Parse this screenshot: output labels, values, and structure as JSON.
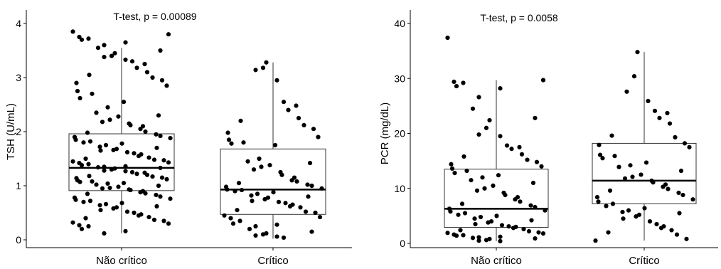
{
  "chart_data": [
    {
      "type": "box",
      "annotation": "T-test, p = 0.00089",
      "ylabel": "TSH (U/mL)",
      "xlabel": "",
      "categories": [
        "Não crítico",
        "Crítico"
      ],
      "ylim": [
        -0.1,
        4.15
      ],
      "yticks": [
        0,
        1,
        2,
        3,
        4
      ],
      "grid": false,
      "boxes": [
        {
          "category": "Não crítico",
          "min": 0.12,
          "q1": 0.91,
          "median": 1.33,
          "q3": 1.96,
          "max": 3.55
        },
        {
          "category": "Crítico",
          "min": 0.02,
          "q1": 0.47,
          "median": 0.93,
          "q3": 1.68,
          "max": 3.28
        }
      ],
      "points": [
        {
          "group": 0,
          "values": [
            3.85,
            3.8,
            3.75,
            3.72,
            3.7,
            3.65,
            3.6,
            3.55,
            3.5,
            3.45,
            3.4,
            3.38,
            3.33,
            3.3,
            3.25,
            3.18,
            3.1,
            3.05,
            3.0,
            2.95,
            2.9,
            2.85,
            2.75,
            2.7,
            2.62,
            2.55,
            2.45,
            2.35,
            2.3,
            2.28,
            2.22,
            2.18,
            2.15,
            2.12,
            2.1,
            2.05,
            2.0,
            1.98,
            1.95,
            1.92,
            1.9,
            1.88,
            1.85,
            1.82,
            1.8,
            1.78,
            1.75,
            1.72,
            1.7,
            1.68,
            1.66,
            1.65,
            1.62,
            1.6,
            1.58,
            1.55,
            1.52,
            1.5,
            1.48,
            1.47,
            1.45,
            1.43,
            1.42,
            1.4,
            1.38,
            1.36,
            1.35,
            1.34,
            1.33,
            1.32,
            1.3,
            1.28,
            1.27,
            1.25,
            1.24,
            1.22,
            1.2,
            1.18,
            1.17,
            1.15,
            1.14,
            1.12,
            1.1,
            1.08,
            1.07,
            1.05,
            1.04,
            1.02,
            1.0,
            0.98,
            0.96,
            0.95,
            0.93,
            0.92,
            0.9,
            0.88,
            0.86,
            0.85,
            0.83,
            0.8,
            0.78,
            0.76,
            0.74,
            0.72,
            0.7,
            0.68,
            0.66,
            0.64,
            0.62,
            0.6,
            0.58,
            0.55,
            0.52,
            0.5,
            0.47,
            0.45,
            0.42,
            0.4,
            0.37,
            0.35,
            0.32,
            0.3,
            0.27,
            0.25,
            0.2,
            0.16,
            0.12
          ]
        },
        {
          "group": 1,
          "values": [
            3.28,
            3.18,
            3.14,
            2.95,
            2.55,
            2.48,
            2.4,
            2.25,
            2.2,
            2.12,
            2.05,
            1.98,
            1.9,
            1.85,
            1.8,
            1.78,
            1.75,
            1.5,
            1.45,
            1.42,
            1.38,
            1.35,
            1.3,
            1.25,
            1.2,
            1.15,
            1.1,
            1.08,
            1.05,
            1.02,
            1.0,
            0.98,
            0.95,
            0.93,
            0.92,
            0.9,
            0.88,
            0.85,
            0.82,
            0.8,
            0.78,
            0.75,
            0.72,
            0.7,
            0.68,
            0.65,
            0.62,
            0.6,
            0.55,
            0.52,
            0.5,
            0.45,
            0.42,
            0.4,
            0.35,
            0.3,
            0.28,
            0.25,
            0.2,
            0.15,
            0.12,
            0.1,
            0.08,
            0.06,
            0.04
          ]
        }
      ]
    },
    {
      "type": "box",
      "annotation": "T-test, p = 0.0058",
      "ylabel": "PCR (mg/dL)",
      "xlabel": "",
      "categories": [
        "Não crítico",
        "Crítico"
      ],
      "ylim": [
        -1,
        41
      ],
      "yticks": [
        0,
        10,
        20,
        30,
        40
      ],
      "grid": false,
      "boxes": [
        {
          "category": "Não crítico",
          "min": 0.4,
          "q1": 2.9,
          "median": 6.3,
          "q3": 13.5,
          "max": 29.7
        },
        {
          "category": "Crítico",
          "min": 0.5,
          "q1": 7.2,
          "median": 11.4,
          "q3": 18.2,
          "max": 34.8
        }
      ],
      "points": [
        {
          "group": 0,
          "values": [
            37.4,
            29.7,
            29.4,
            29.2,
            28.6,
            28.2,
            26.6,
            24.5,
            22.8,
            22.4,
            21.0,
            19.8,
            19.5,
            17.8,
            17.5,
            17.2,
            16.2,
            15.8,
            15.2,
            14.8,
            14.4,
            14.0,
            13.6,
            13.2,
            12.8,
            12.4,
            12.0,
            11.5,
            11.0,
            10.5,
            10.0,
            9.6,
            9.2,
            8.8,
            8.4,
            8.0,
            7.6,
            7.2,
            6.9,
            6.6,
            6.3,
            6.0,
            5.8,
            5.5,
            5.2,
            5.0,
            4.8,
            4.5,
            4.2,
            4.0,
            3.8,
            3.5,
            3.3,
            3.1,
            3.0,
            2.8,
            2.6,
            2.4,
            2.2,
            2.0,
            1.9,
            1.8,
            1.6,
            1.5,
            1.4,
            1.2,
            1.1,
            1.0,
            0.9,
            0.8,
            0.6,
            0.5,
            0.4
          ]
        },
        {
          "group": 1,
          "values": [
            34.8,
            30.4,
            27.6,
            25.9,
            24.1,
            23.7,
            22.8,
            21.8,
            19.6,
            19.3,
            18.2,
            17.9,
            17.5,
            16.1,
            15.9,
            15.5,
            14.7,
            14.2,
            13.9,
            13.2,
            12.5,
            12.1,
            11.8,
            11.4,
            11.1,
            10.7,
            10.3,
            9.9,
            9.6,
            9.2,
            8.8,
            8.4,
            8.0,
            7.6,
            7.2,
            6.8,
            6.4,
            6.0,
            5.7,
            5.5,
            5.2,
            4.9,
            4.5,
            4.0,
            3.5,
            3.1,
            2.8,
            2.4,
            2.0,
            1.6,
            0.8,
            0.5
          ]
        }
      ]
    }
  ]
}
